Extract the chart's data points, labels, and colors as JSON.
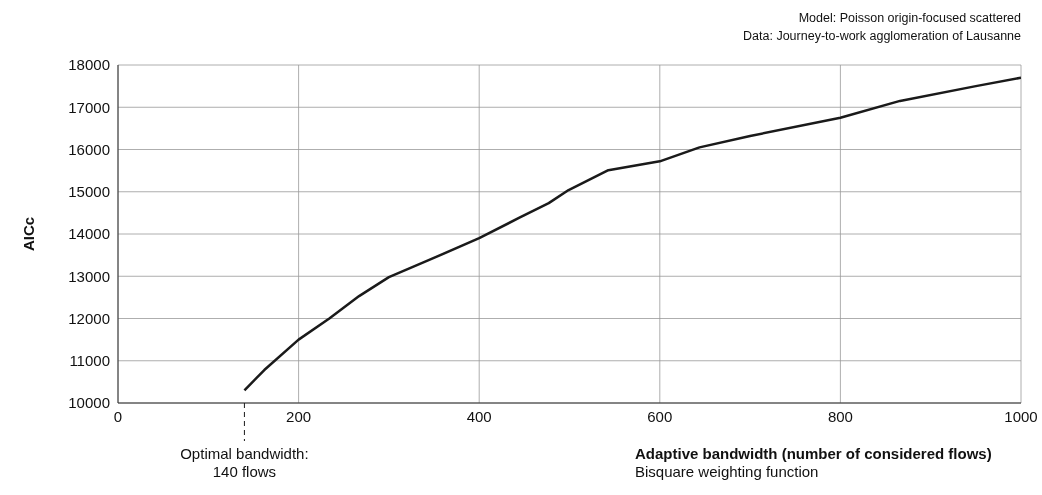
{
  "chart_data": {
    "type": "line",
    "xlabel": "Adaptive bandwidth (number of considered flows)",
    "ylabel": "AICc",
    "annotations": [
      "Model: Poisson origin-focused scattered",
      "Data: Journey-to-work agglomeration of Lausanne",
      "Bisquare weighting function"
    ],
    "x": [
      140,
      162,
      200,
      234,
      267,
      300,
      344,
      400,
      444,
      477,
      499,
      543,
      600,
      644,
      700,
      800,
      866,
      950,
      1000
    ],
    "series": [
      {
        "color": "#1a1a1a",
        "values": [
          10300,
          10780,
          11500,
          12000,
          12530,
          12980,
          13380,
          13900,
          14380,
          14730,
          15040,
          15510,
          15720,
          16050,
          16320,
          16750,
          17150,
          17500,
          17700
        ]
      }
    ],
    "xlim": [
      0,
      1000
    ],
    "xticks": [
      0,
      200,
      400,
      600,
      800,
      1000
    ],
    "ylim": [
      10000,
      18000
    ],
    "yticks": [
      10000,
      11000,
      12000,
      13000,
      14000,
      15000,
      16000,
      17000,
      18000
    ],
    "grid": true,
    "marker": "none",
    "line_style": "solid",
    "ref_lines": [
      {
        "axis": "x",
        "value": 140,
        "label": "Optimal bandwidth:\n140 flows",
        "color": "#1a1a1a",
        "line_style": "dashed"
      }
    ]
  }
}
